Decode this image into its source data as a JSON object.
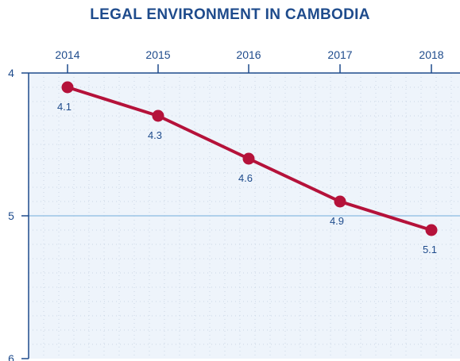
{
  "chart_data": {
    "type": "line",
    "title": "LEGAL ENVIRONMENT IN CAMBODIA",
    "x": [
      "2014",
      "2015",
      "2016",
      "2017",
      "2018"
    ],
    "series": [
      {
        "values": [
          4.1,
          4.3,
          4.6,
          4.9,
          5.1
        ],
        "color": "#b5123a"
      }
    ],
    "data_labels": [
      "4.1",
      "4.3",
      "4.6",
      "4.9",
      "5.1"
    ],
    "y_ticks": [
      "4",
      "5",
      "6"
    ],
    "ylim": [
      4,
      6
    ],
    "y_inverted": true,
    "x_axis_position": "top",
    "grid": true,
    "colors": {
      "title": "#1e4b8c",
      "axis": "#1e4b8c",
      "plot_bg": "#eef4fb",
      "line": "#b5123a"
    }
  }
}
